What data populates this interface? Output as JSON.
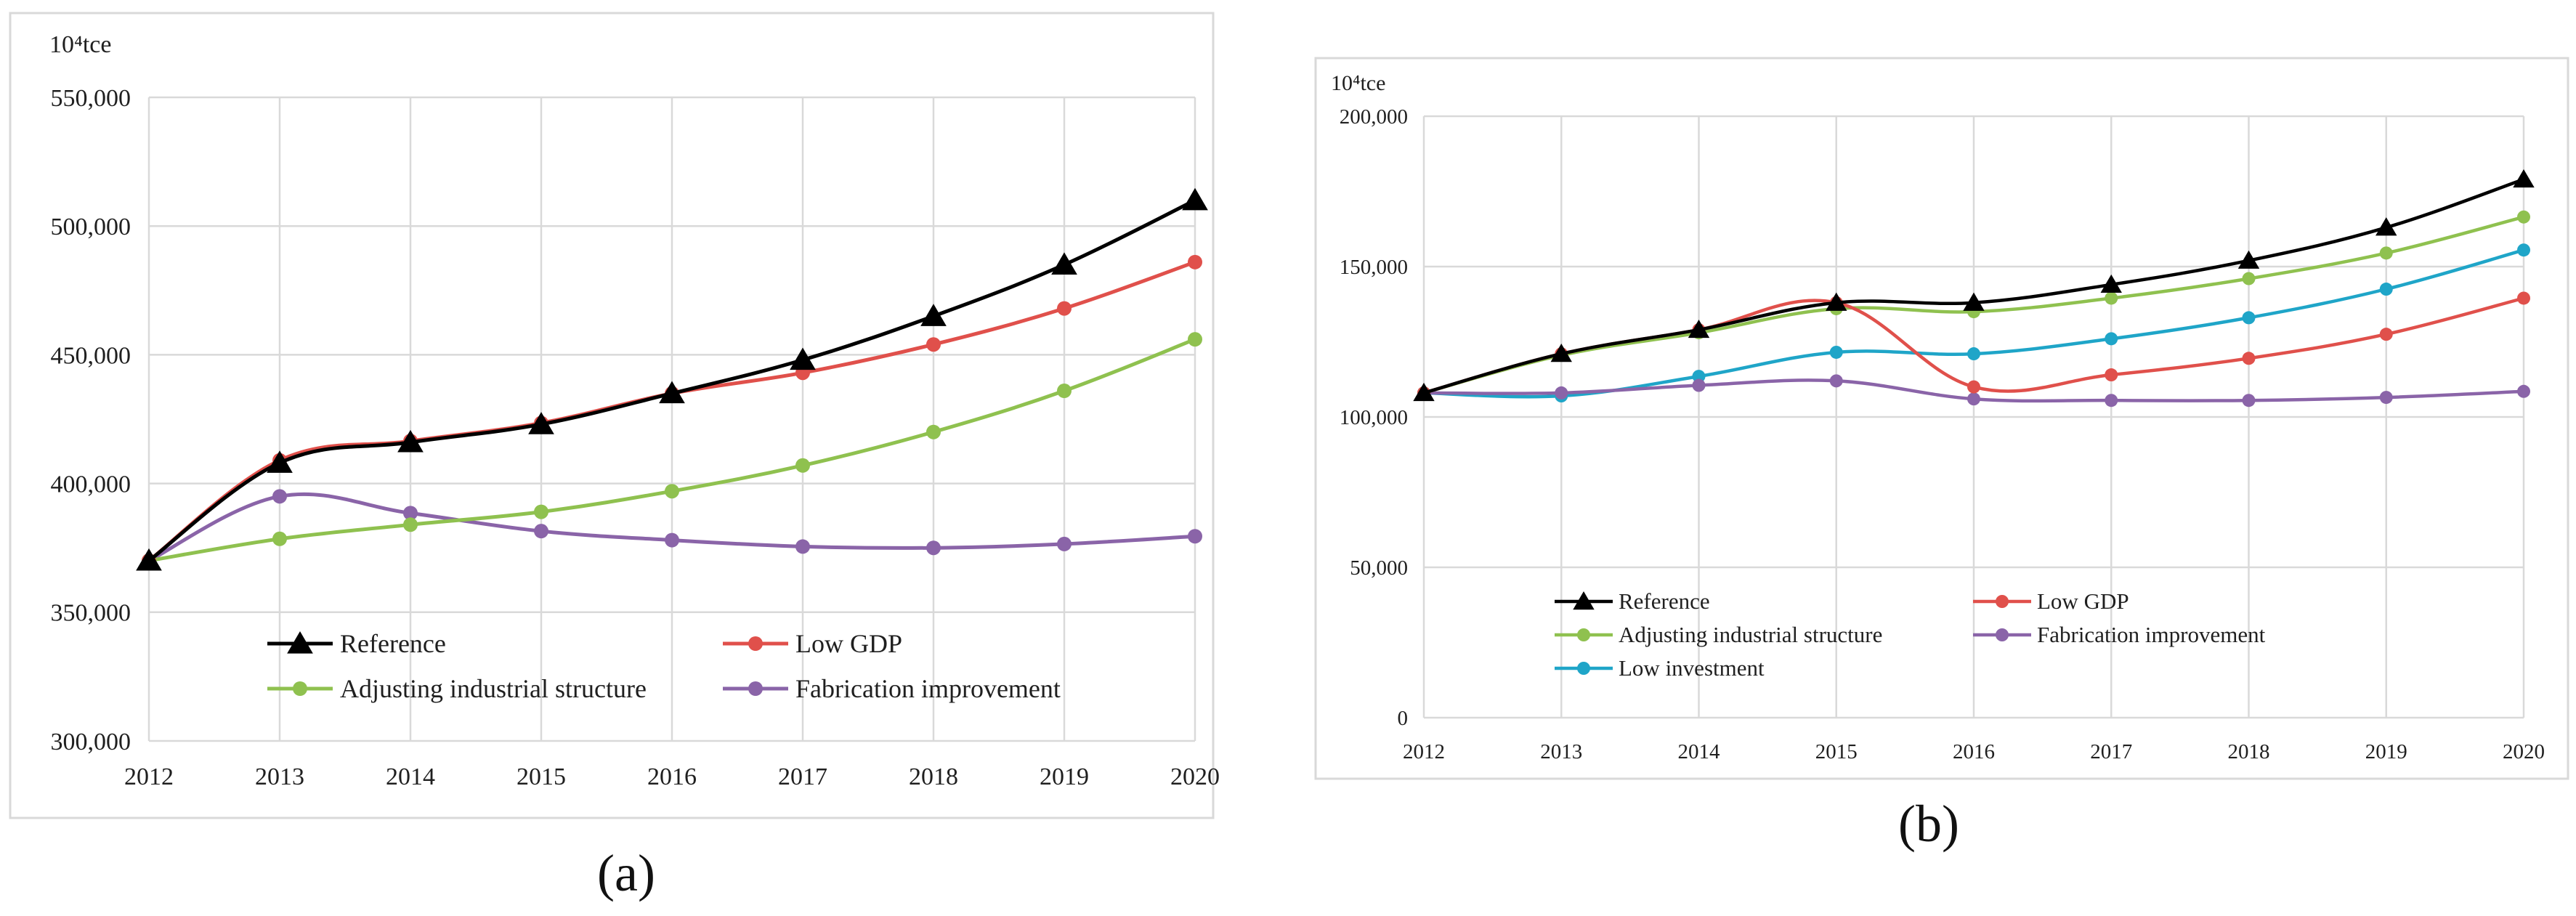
{
  "chart_data": [
    {
      "type": "line",
      "panel_label": "(a)",
      "unit_label": "10⁴tce",
      "categories": [
        "2012",
        "2013",
        "2014",
        "2015",
        "2016",
        "2017",
        "2018",
        "2019",
        "2020"
      ],
      "ylim": [
        300000,
        550000
      ],
      "yticks": [
        300000,
        350000,
        400000,
        450000,
        500000,
        550000
      ],
      "ytick_labels": [
        "300,000",
        "350,000",
        "400,000",
        "450,000",
        "500,000",
        "550,000"
      ],
      "grid": true,
      "legend_position": "bottom-center",
      "series": [
        {
          "name": "Reference",
          "color": "#000000",
          "marker": "triangle",
          "values": [
            370000,
            408000,
            416000,
            423000,
            435000,
            448000,
            465000,
            485000,
            510000
          ]
        },
        {
          "name": "Low GDP",
          "color": "#e0504b",
          "marker": "circle",
          "values": [
            370000,
            409000,
            416500,
            423500,
            435000,
            443000,
            454000,
            468000,
            486000
          ]
        },
        {
          "name": "Adjusting industrial structure",
          "color": "#8fc14f",
          "marker": "circle",
          "values": [
            370000,
            378500,
            384000,
            389000,
            397000,
            407000,
            420000,
            436000,
            456000
          ]
        },
        {
          "name": "Fabrication improvement",
          "color": "#8a64a8",
          "marker": "circle",
          "values": [
            370000,
            395000,
            388500,
            381500,
            378000,
            375500,
            375000,
            376500,
            379500
          ]
        }
      ]
    },
    {
      "type": "line",
      "panel_label": "(b)",
      "unit_label": "10⁴tce",
      "categories": [
        "2012",
        "2013",
        "2014",
        "2015",
        "2016",
        "2017",
        "2018",
        "2019",
        "2020"
      ],
      "ylim": [
        0,
        200000
      ],
      "yticks": [
        0,
        50000,
        100000,
        150000,
        200000
      ],
      "ytick_labels": [
        "0",
        "50,000",
        "100,000",
        "150,000",
        "200,000"
      ],
      "grid": true,
      "legend_position": "bottom-left",
      "series": [
        {
          "name": "Reference",
          "color": "#000000",
          "marker": "triangle",
          "values": [
            108000,
            121000,
            129000,
            138000,
            138000,
            144000,
            152000,
            163000,
            179000
          ]
        },
        {
          "name": "Low GDP",
          "color": "#e0504b",
          "marker": "circle",
          "values": [
            108000,
            121000,
            129000,
            138000,
            110000,
            114000,
            119500,
            127500,
            139500
          ]
        },
        {
          "name": "Adjusting industrial structure",
          "color": "#8fc14f",
          "marker": "circle",
          "values": [
            108000,
            120500,
            128000,
            136000,
            135000,
            139500,
            146000,
            154500,
            166500
          ]
        },
        {
          "name": "Fabrication improvement",
          "color": "#8a64a8",
          "marker": "circle",
          "values": [
            108000,
            108000,
            110500,
            112000,
            106000,
            105500,
            105500,
            106500,
            108500
          ]
        },
        {
          "name": "Low investment",
          "color": "#1fa5c8",
          "marker": "circle",
          "values": [
            108000,
            107000,
            113500,
            121500,
            121000,
            126000,
            133000,
            142500,
            155500
          ]
        }
      ]
    }
  ]
}
